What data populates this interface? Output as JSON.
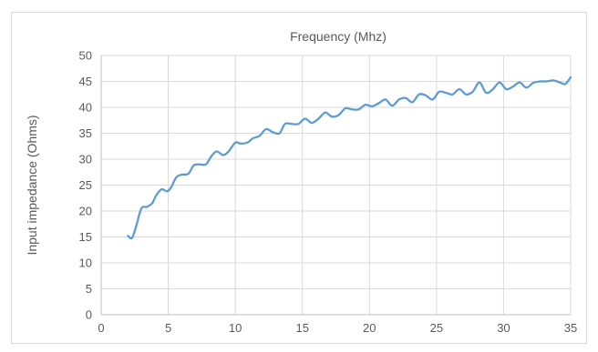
{
  "chart_data": {
    "type": "line",
    "title": "Frequency (Mhz)",
    "xlabel": "",
    "ylabel": "Input impedance (Ohms)",
    "xlim": [
      0,
      35
    ],
    "ylim": [
      0,
      50
    ],
    "x_ticks": [
      0,
      5,
      10,
      15,
      20,
      25,
      30,
      35
    ],
    "y_ticks": [
      0,
      5,
      10,
      15,
      20,
      25,
      30,
      35,
      40,
      45,
      50
    ],
    "grid": true,
    "legend": "none",
    "series": [
      {
        "color": "#5b9bd5",
        "x": [
          2.0,
          2.3,
          2.6,
          3.0,
          3.4,
          3.8,
          4.1,
          4.5,
          4.9,
          5.2,
          5.6,
          6.0,
          6.5,
          6.9,
          7.3,
          7.8,
          8.2,
          8.6,
          9.1,
          9.5,
          10.0,
          10.4,
          10.9,
          11.3,
          11.8,
          12.3,
          12.8,
          13.3,
          13.7,
          14.2,
          14.7,
          15.2,
          15.7,
          16.2,
          16.7,
          17.2,
          17.7,
          18.2,
          18.7,
          19.2,
          19.7,
          20.2,
          20.7,
          21.2,
          21.7,
          22.2,
          22.7,
          23.2,
          23.7,
          24.2,
          24.7,
          25.2,
          25.7,
          26.2,
          26.7,
          27.2,
          27.7,
          28.2,
          28.7,
          29.2,
          29.7,
          30.2,
          30.7,
          31.2,
          31.7,
          32.2,
          32.7,
          33.2,
          33.7,
          34.2,
          34.6,
          35.0
        ],
        "y": [
          15.2,
          14.8,
          17.0,
          20.5,
          20.8,
          21.5,
          23.0,
          24.2,
          23.8,
          24.5,
          26.5,
          27.0,
          27.2,
          28.8,
          29.0,
          29.0,
          30.5,
          31.5,
          30.8,
          31.5,
          33.2,
          33.0,
          33.2,
          34.0,
          34.5,
          35.8,
          35.2,
          35.0,
          36.8,
          36.8,
          36.8,
          37.8,
          37.0,
          37.8,
          39.0,
          38.2,
          38.5,
          39.8,
          39.6,
          39.6,
          40.5,
          40.2,
          40.8,
          41.5,
          40.3,
          41.5,
          41.8,
          41.0,
          42.5,
          42.3,
          41.5,
          43.0,
          42.8,
          42.5,
          43.5,
          42.5,
          43.0,
          44.8,
          42.8,
          43.5,
          44.8,
          43.5,
          44.0,
          44.8,
          43.8,
          44.7,
          45.0,
          45.0,
          45.2,
          44.8,
          44.5,
          45.8
        ]
      }
    ]
  }
}
